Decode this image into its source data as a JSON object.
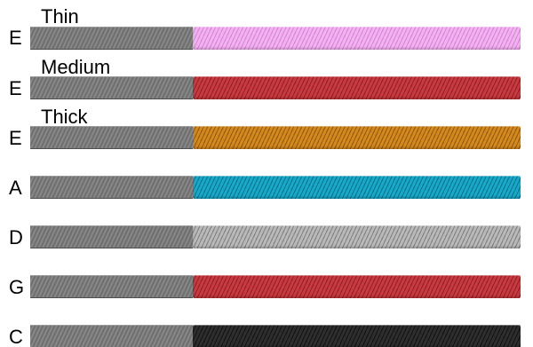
{
  "strings": [
    {
      "letter": "E",
      "size_label": "Thin",
      "color": "#f1b3ef",
      "stripe": "#d880d6"
    },
    {
      "letter": "E",
      "size_label": "Medium",
      "color": "#c73a3f",
      "stripe": "#8f1e24"
    },
    {
      "letter": "E",
      "size_label": "Thick",
      "color": "#d4891f",
      "stripe": "#8f560e"
    },
    {
      "letter": "A",
      "size_label": "",
      "color": "#18a9c9",
      "stripe": "#0b6f87"
    },
    {
      "letter": "D",
      "size_label": "",
      "color": "#b9b9b9",
      "stripe": "#7d7d7d"
    },
    {
      "letter": "G",
      "size_label": "",
      "color": "#c73a3f",
      "stripe": "#8f1e24"
    },
    {
      "letter": "C",
      "size_label": "",
      "color": "#2e2e2e",
      "stripe": "#111111"
    }
  ]
}
